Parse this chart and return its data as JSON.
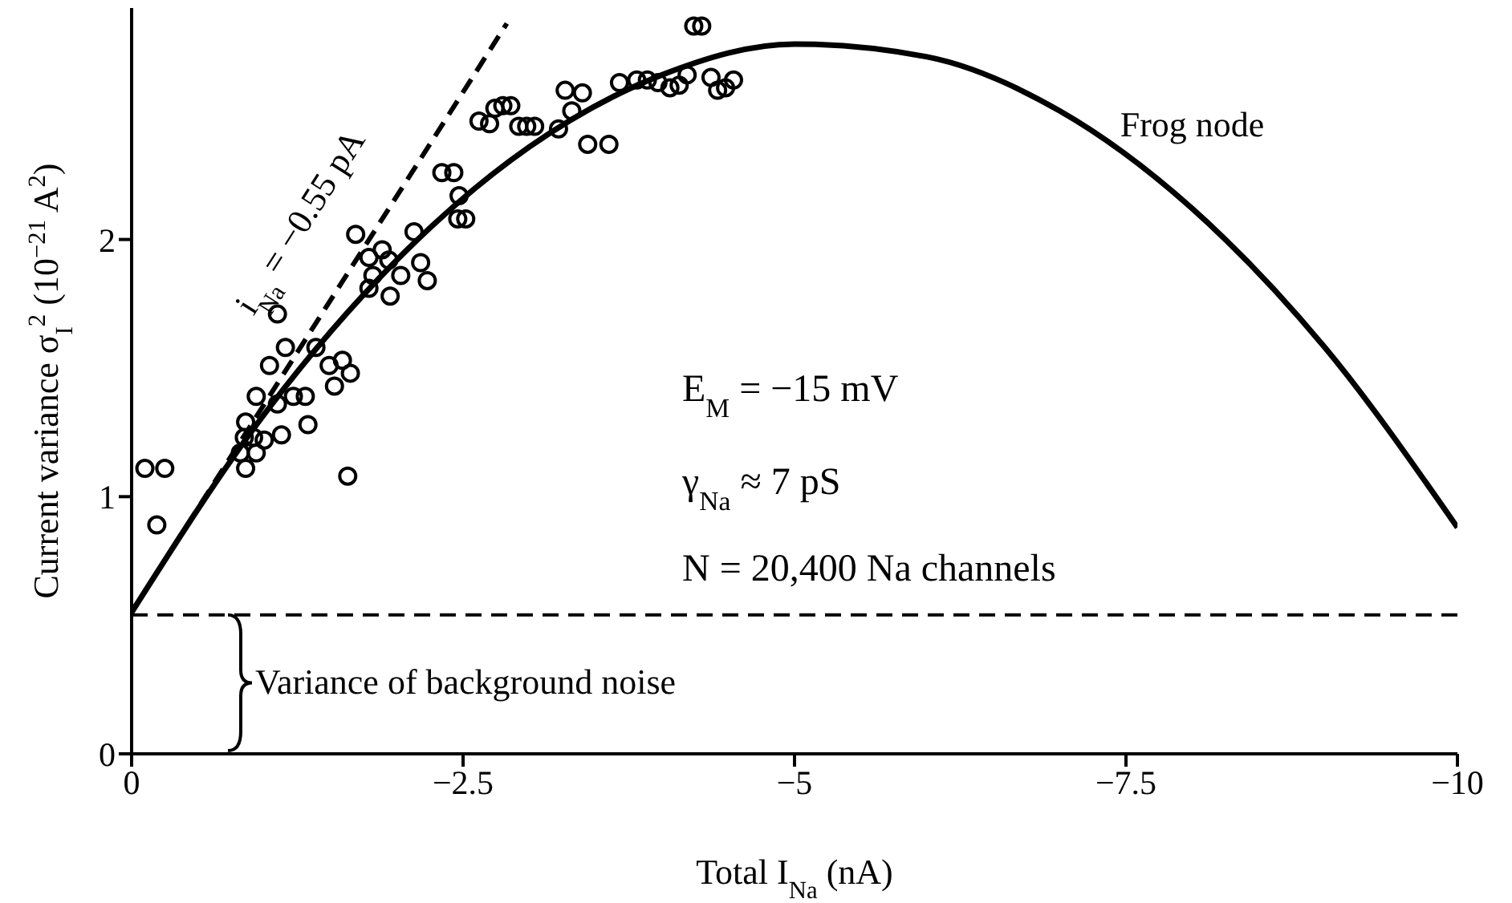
{
  "chart_data": {
    "type": "scatter",
    "xlabel": "Total I$_{Na}$ (nA)",
    "ylabel": "Current variance σ$_{I}$$^{2}$ (10$^{−21}$ A$^{2}$)",
    "xlim": [
      0,
      -10
    ],
    "xticks": [
      0,
      {
        "value": -2.5,
        "label": "−2.5"
      },
      {
        "value": -5,
        "label": "−5"
      },
      {
        "value": -7.5,
        "label": "−7.5"
      },
      {
        "value": -10,
        "label": "−10"
      }
    ],
    "ylim": [
      0,
      2.9
    ],
    "yticks": [
      0,
      1,
      2
    ],
    "ref_lines": [
      {
        "axis": "y",
        "value": 0.54,
        "label": "Variance of background noise",
        "line_style": "dashed",
        "color": "#000000"
      }
    ],
    "annotations": [
      "E$_{M}$ = −15 mV",
      "γ$_{Na}$ ≈ 7 pS",
      "N = 20,400 Na channels"
    ],
    "series": [
      {
        "color": "#000000",
        "marker": "circle",
        "x": [
          -4.24,
          -4.3,
          -2.62,
          -2.7,
          -2.74,
          -2.8,
          -2.86,
          -2.92,
          -2.98,
          -3.04,
          -3.22,
          -3.27,
          -3.4,
          -3.32,
          -3.44,
          -3.6,
          -3.68,
          -3.81,
          -3.89,
          -3.97,
          -4.06,
          -4.13,
          -4.19,
          -4.37,
          -4.42,
          -4.48,
          -4.54,
          -2.34,
          -2.43,
          -2.47,
          -2.46,
          -2.52,
          -1.69,
          -2.13,
          -1.79,
          -1.94,
          -1.89,
          -2.18,
          -2.23,
          -2.03,
          -1.79,
          -1.95,
          -1.1,
          -1.04,
          -1.16,
          -1.39,
          -1.22,
          -1.31,
          -1.49,
          -1.59,
          -1.65,
          -1.53,
          -1.13,
          -1.33,
          -0.94,
          -0.86,
          -0.85,
          -0.92,
          -1.0,
          -0.82,
          -0.94,
          -0.86,
          -1.1,
          -1.63,
          -0.1,
          -0.25,
          -0.19,
          -1.82
        ],
        "values": [
          2.83,
          2.83,
          2.46,
          2.45,
          2.51,
          2.52,
          2.52,
          2.44,
          2.44,
          2.44,
          2.43,
          2.58,
          2.57,
          2.5,
          2.37,
          2.37,
          2.61,
          2.62,
          2.62,
          2.61,
          2.59,
          2.6,
          2.64,
          2.63,
          2.58,
          2.59,
          2.62,
          2.26,
          2.26,
          2.17,
          2.08,
          2.08,
          2.02,
          2.03,
          1.93,
          1.92,
          1.96,
          1.91,
          1.84,
          1.86,
          1.81,
          1.78,
          1.71,
          1.51,
          1.58,
          1.58,
          1.39,
          1.39,
          1.51,
          1.53,
          1.48,
          1.43,
          1.24,
          1.28,
          1.39,
          1.29,
          1.23,
          1.23,
          1.22,
          1.17,
          1.17,
          1.11,
          1.36,
          1.08,
          1.11,
          1.11,
          0.89,
          1.86
        ]
      },
      {
        "type": "line",
        "name": "Frog node",
        "color": "#000000",
        "line_style": "solid",
        "marker": "none",
        "x": [
          0,
          -1,
          -2,
          -3,
          -4,
          -5,
          -6,
          -7,
          -8,
          -9,
          -10
        ],
        "values": [
          0.55,
          1.32,
          1.92,
          2.36,
          2.64,
          2.76,
          2.71,
          2.5,
          2.12,
          1.58,
          0.88
        ]
      },
      {
        "type": "line",
        "name": "i$_{Na}$ = −0.55 pA",
        "color": "#000000",
        "line_style": "dashed",
        "marker": "none",
        "x": [
          0,
          -2.83
        ],
        "values": [
          0.55,
          2.84
        ]
      }
    ]
  }
}
